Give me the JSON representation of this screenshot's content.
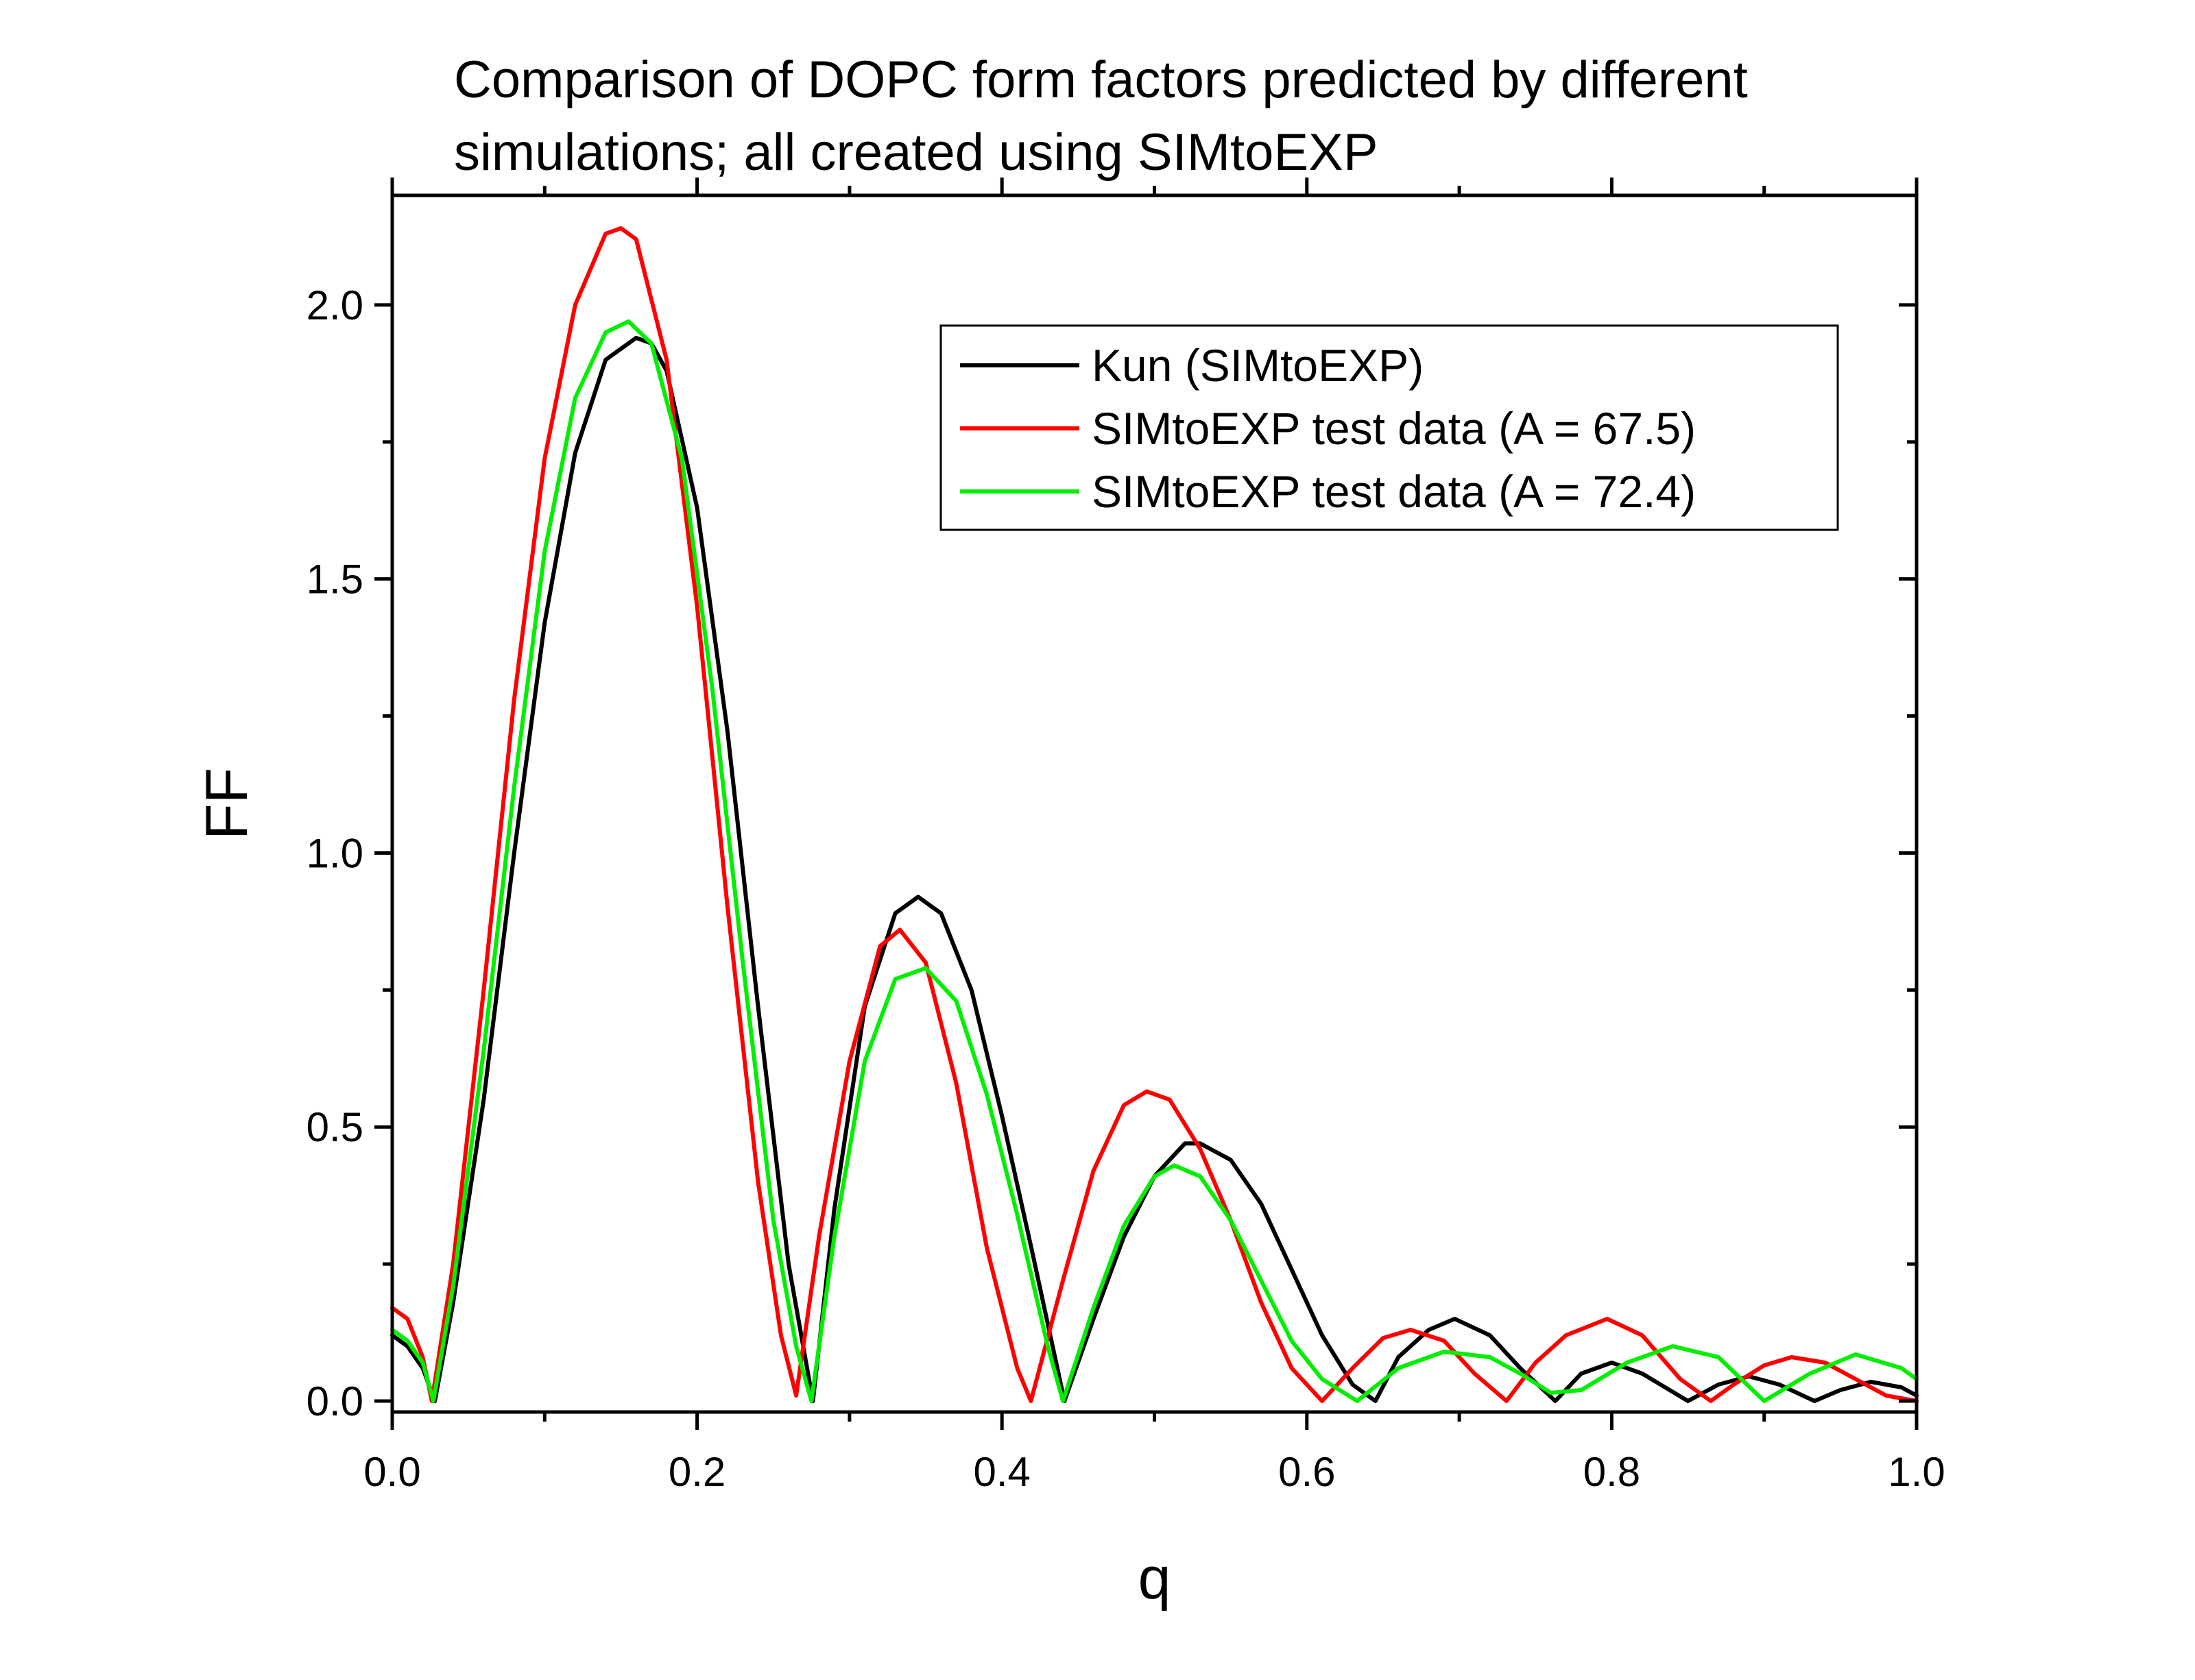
{
  "chart_data": {
    "type": "line",
    "title_lines": [
      "Comparison of DOPC form factors predicted by different",
      "simulations; all created using SIMtoEXP"
    ],
    "xlabel": "q",
    "ylabel": "FF",
    "xlim": [
      0.0,
      1.0
    ],
    "ylim": [
      -0.02,
      2.2
    ],
    "x_ticks": [
      "0.0",
      "0.2",
      "0.4",
      "0.6",
      "0.8",
      "1.0"
    ],
    "x_tick_values": [
      0.0,
      0.2,
      0.4,
      0.6,
      0.8,
      1.0
    ],
    "y_ticks": [
      "0.0",
      "0.5",
      "1.0",
      "1.5",
      "2.0"
    ],
    "y_tick_values": [
      0.0,
      0.5,
      1.0,
      1.5,
      2.0
    ],
    "grid": false,
    "legend_position": "top-right",
    "series": [
      {
        "name": "Kun (SIMtoEXP)",
        "color": "#000000",
        "x": [
          0.0,
          0.01,
          0.02,
          0.028,
          0.04,
          0.06,
          0.08,
          0.1,
          0.12,
          0.14,
          0.16,
          0.17,
          0.18,
          0.2,
          0.22,
          0.24,
          0.26,
          0.276,
          0.29,
          0.31,
          0.33,
          0.345,
          0.36,
          0.38,
          0.4,
          0.42,
          0.441,
          0.46,
          0.48,
          0.5,
          0.52,
          0.53,
          0.55,
          0.57,
          0.59,
          0.61,
          0.63,
          0.645,
          0.66,
          0.68,
          0.697,
          0.72,
          0.74,
          0.763,
          0.78,
          0.8,
          0.82,
          0.85,
          0.87,
          0.89,
          0.91,
          0.933,
          0.95,
          0.97,
          0.99,
          1.0
        ],
        "y": [
          0.12,
          0.1,
          0.06,
          0.0,
          0.18,
          0.55,
          1.0,
          1.42,
          1.73,
          1.9,
          1.94,
          1.93,
          1.88,
          1.63,
          1.22,
          0.72,
          0.25,
          0.0,
          0.35,
          0.72,
          0.89,
          0.92,
          0.89,
          0.75,
          0.52,
          0.27,
          0.0,
          0.15,
          0.3,
          0.41,
          0.47,
          0.47,
          0.44,
          0.36,
          0.24,
          0.12,
          0.03,
          0.0,
          0.08,
          0.13,
          0.15,
          0.12,
          0.06,
          0.0,
          0.05,
          0.07,
          0.05,
          0.0,
          0.03,
          0.045,
          0.03,
          0.0,
          0.02,
          0.035,
          0.025,
          0.01
        ]
      },
      {
        "name": "SIMtoEXP test data (A = 67.5)",
        "color": "#ff0000",
        "x": [
          0.0,
          0.01,
          0.02,
          0.026,
          0.04,
          0.06,
          0.08,
          0.1,
          0.12,
          0.14,
          0.15,
          0.16,
          0.18,
          0.2,
          0.22,
          0.24,
          0.255,
          0.265,
          0.28,
          0.3,
          0.32,
          0.333,
          0.35,
          0.37,
          0.39,
          0.41,
          0.419,
          0.44,
          0.46,
          0.48,
          0.495,
          0.51,
          0.53,
          0.55,
          0.57,
          0.59,
          0.61,
          0.63,
          0.65,
          0.668,
          0.69,
          0.71,
          0.731,
          0.75,
          0.77,
          0.797,
          0.82,
          0.845,
          0.865,
          0.88,
          0.9,
          0.918,
          0.94,
          0.96,
          0.98,
          1.0
        ],
        "y": [
          0.17,
          0.15,
          0.08,
          0.0,
          0.25,
          0.75,
          1.28,
          1.72,
          2.0,
          2.13,
          2.14,
          2.12,
          1.9,
          1.45,
          0.9,
          0.4,
          0.12,
          0.01,
          0.3,
          0.62,
          0.83,
          0.86,
          0.8,
          0.58,
          0.28,
          0.06,
          0.0,
          0.22,
          0.42,
          0.54,
          0.565,
          0.55,
          0.46,
          0.33,
          0.18,
          0.06,
          0.0,
          0.06,
          0.115,
          0.13,
          0.11,
          0.05,
          0.0,
          0.07,
          0.12,
          0.15,
          0.12,
          0.04,
          0.0,
          0.03,
          0.065,
          0.08,
          0.07,
          0.04,
          0.01,
          0.0
        ]
      },
      {
        "name": "SIMtoEXP test data (A = 72.4)",
        "color": "#00ee00",
        "x": [
          0.0,
          0.01,
          0.02,
          0.027,
          0.04,
          0.06,
          0.08,
          0.1,
          0.12,
          0.14,
          0.155,
          0.17,
          0.19,
          0.21,
          0.23,
          0.25,
          0.265,
          0.275,
          0.29,
          0.31,
          0.33,
          0.35,
          0.37,
          0.39,
          0.41,
          0.43,
          0.44,
          0.46,
          0.48,
          0.5,
          0.513,
          0.53,
          0.55,
          0.57,
          0.59,
          0.61,
          0.633,
          0.66,
          0.69,
          0.72,
          0.74,
          0.76,
          0.78,
          0.81,
          0.84,
          0.87,
          0.9,
          0.93,
          0.96,
          0.99,
          1.0
        ],
        "y": [
          0.13,
          0.11,
          0.07,
          0.0,
          0.21,
          0.64,
          1.12,
          1.55,
          1.83,
          1.95,
          1.97,
          1.93,
          1.72,
          1.3,
          0.8,
          0.33,
          0.1,
          0.0,
          0.3,
          0.62,
          0.77,
          0.79,
          0.73,
          0.56,
          0.34,
          0.1,
          0.0,
          0.17,
          0.32,
          0.41,
          0.43,
          0.41,
          0.33,
          0.22,
          0.11,
          0.04,
          0.0,
          0.06,
          0.09,
          0.08,
          0.05,
          0.015,
          0.02,
          0.07,
          0.1,
          0.08,
          0.0,
          0.05,
          0.085,
          0.06,
          0.04
        ]
      }
    ]
  }
}
